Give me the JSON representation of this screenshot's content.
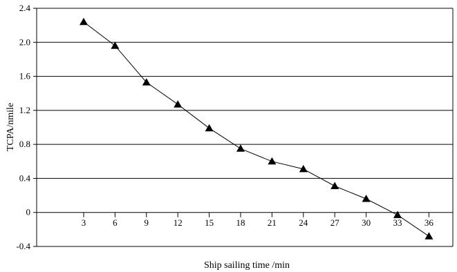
{
  "chart_data": {
    "type": "line",
    "xlabel": "Ship sailing time /min",
    "ylabel": "TCPA/nmile",
    "ylim": [
      -0.4,
      2.4
    ],
    "x_ticks": [
      "3",
      "6",
      "9",
      "12",
      "15",
      "18",
      "21",
      "24",
      "27",
      "30",
      "33",
      "36"
    ],
    "y_ticks": [
      "2.4",
      "2.0",
      "1.6",
      "1.2",
      "0.8",
      "0.4",
      "0",
      "-0.4"
    ],
    "grid": "horizontal",
    "marker": "triangle",
    "series": [
      {
        "x": [
          3,
          6,
          9,
          12,
          15,
          18,
          21,
          24,
          27,
          30,
          33,
          36
        ],
        "y": [
          2.24,
          1.96,
          1.53,
          1.27,
          0.99,
          0.75,
          0.6,
          0.51,
          0.31,
          0.16,
          -0.03,
          -0.28
        ]
      }
    ],
    "colors": {
      "line": "#000000",
      "grid": "#000000",
      "marker": "#000000"
    }
  }
}
